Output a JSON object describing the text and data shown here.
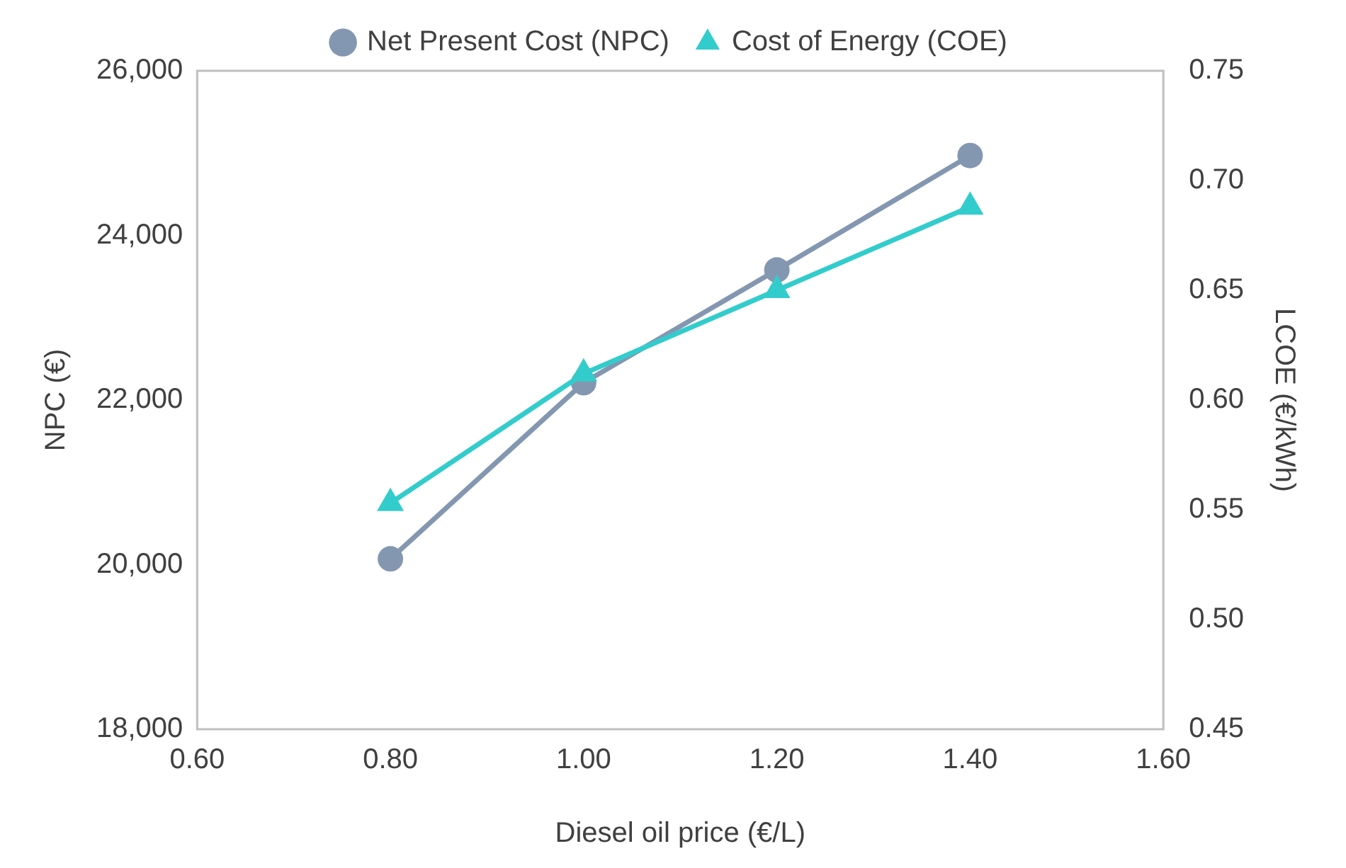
{
  "chart_data": {
    "type": "line",
    "xlabel": "Diesel oil price (€/L)",
    "ylabel": "NPC (€)",
    "y2label": "LCOE (€/kWh)",
    "x": [
      0.8,
      1.0,
      1.2,
      1.4
    ],
    "series": [
      {
        "name": "Net Present Cost (NPC)",
        "color": "#8497b0",
        "values": [
          20070,
          22210,
          23580,
          24970
        ],
        "marker": "circle"
      },
      {
        "name": "Cost of Energy (COE)",
        "color": "#33cccc",
        "values": [
          0.553,
          0.612,
          0.65,
          0.688
        ],
        "marker": "triangle",
        "axis": "y2"
      }
    ],
    "xlim": [
      0.6,
      1.6
    ],
    "xticks": [
      {
        "value": 0.6,
        "label": "0.60"
      },
      {
        "value": 0.8,
        "label": "0.80"
      },
      {
        "value": 1.0,
        "label": "1.00"
      },
      {
        "value": 1.2,
        "label": "1.20"
      },
      {
        "value": 1.4,
        "label": "1.40"
      },
      {
        "value": 1.6,
        "label": "1.60"
      }
    ],
    "ylim": [
      18000,
      26000
    ],
    "yticks": [
      {
        "value": 18000,
        "label": "18,000"
      },
      {
        "value": 20000,
        "label": "20,000"
      },
      {
        "value": 22000,
        "label": "22,000"
      },
      {
        "value": 24000,
        "label": "24,000"
      },
      {
        "value": 26000,
        "label": "26,000"
      }
    ],
    "y2lim": [
      0.45,
      0.75
    ],
    "y2ticks": [
      {
        "value": 0.45,
        "label": "0.45"
      },
      {
        "value": 0.5,
        "label": "0.50"
      },
      {
        "value": 0.55,
        "label": "0.55"
      },
      {
        "value": 0.6,
        "label": "0.60"
      },
      {
        "value": 0.65,
        "label": "0.65"
      },
      {
        "value": 0.7,
        "label": "0.70"
      },
      {
        "value": 0.75,
        "label": "0.75"
      }
    ],
    "grid": false,
    "legend": "top",
    "line_style": "solid"
  }
}
